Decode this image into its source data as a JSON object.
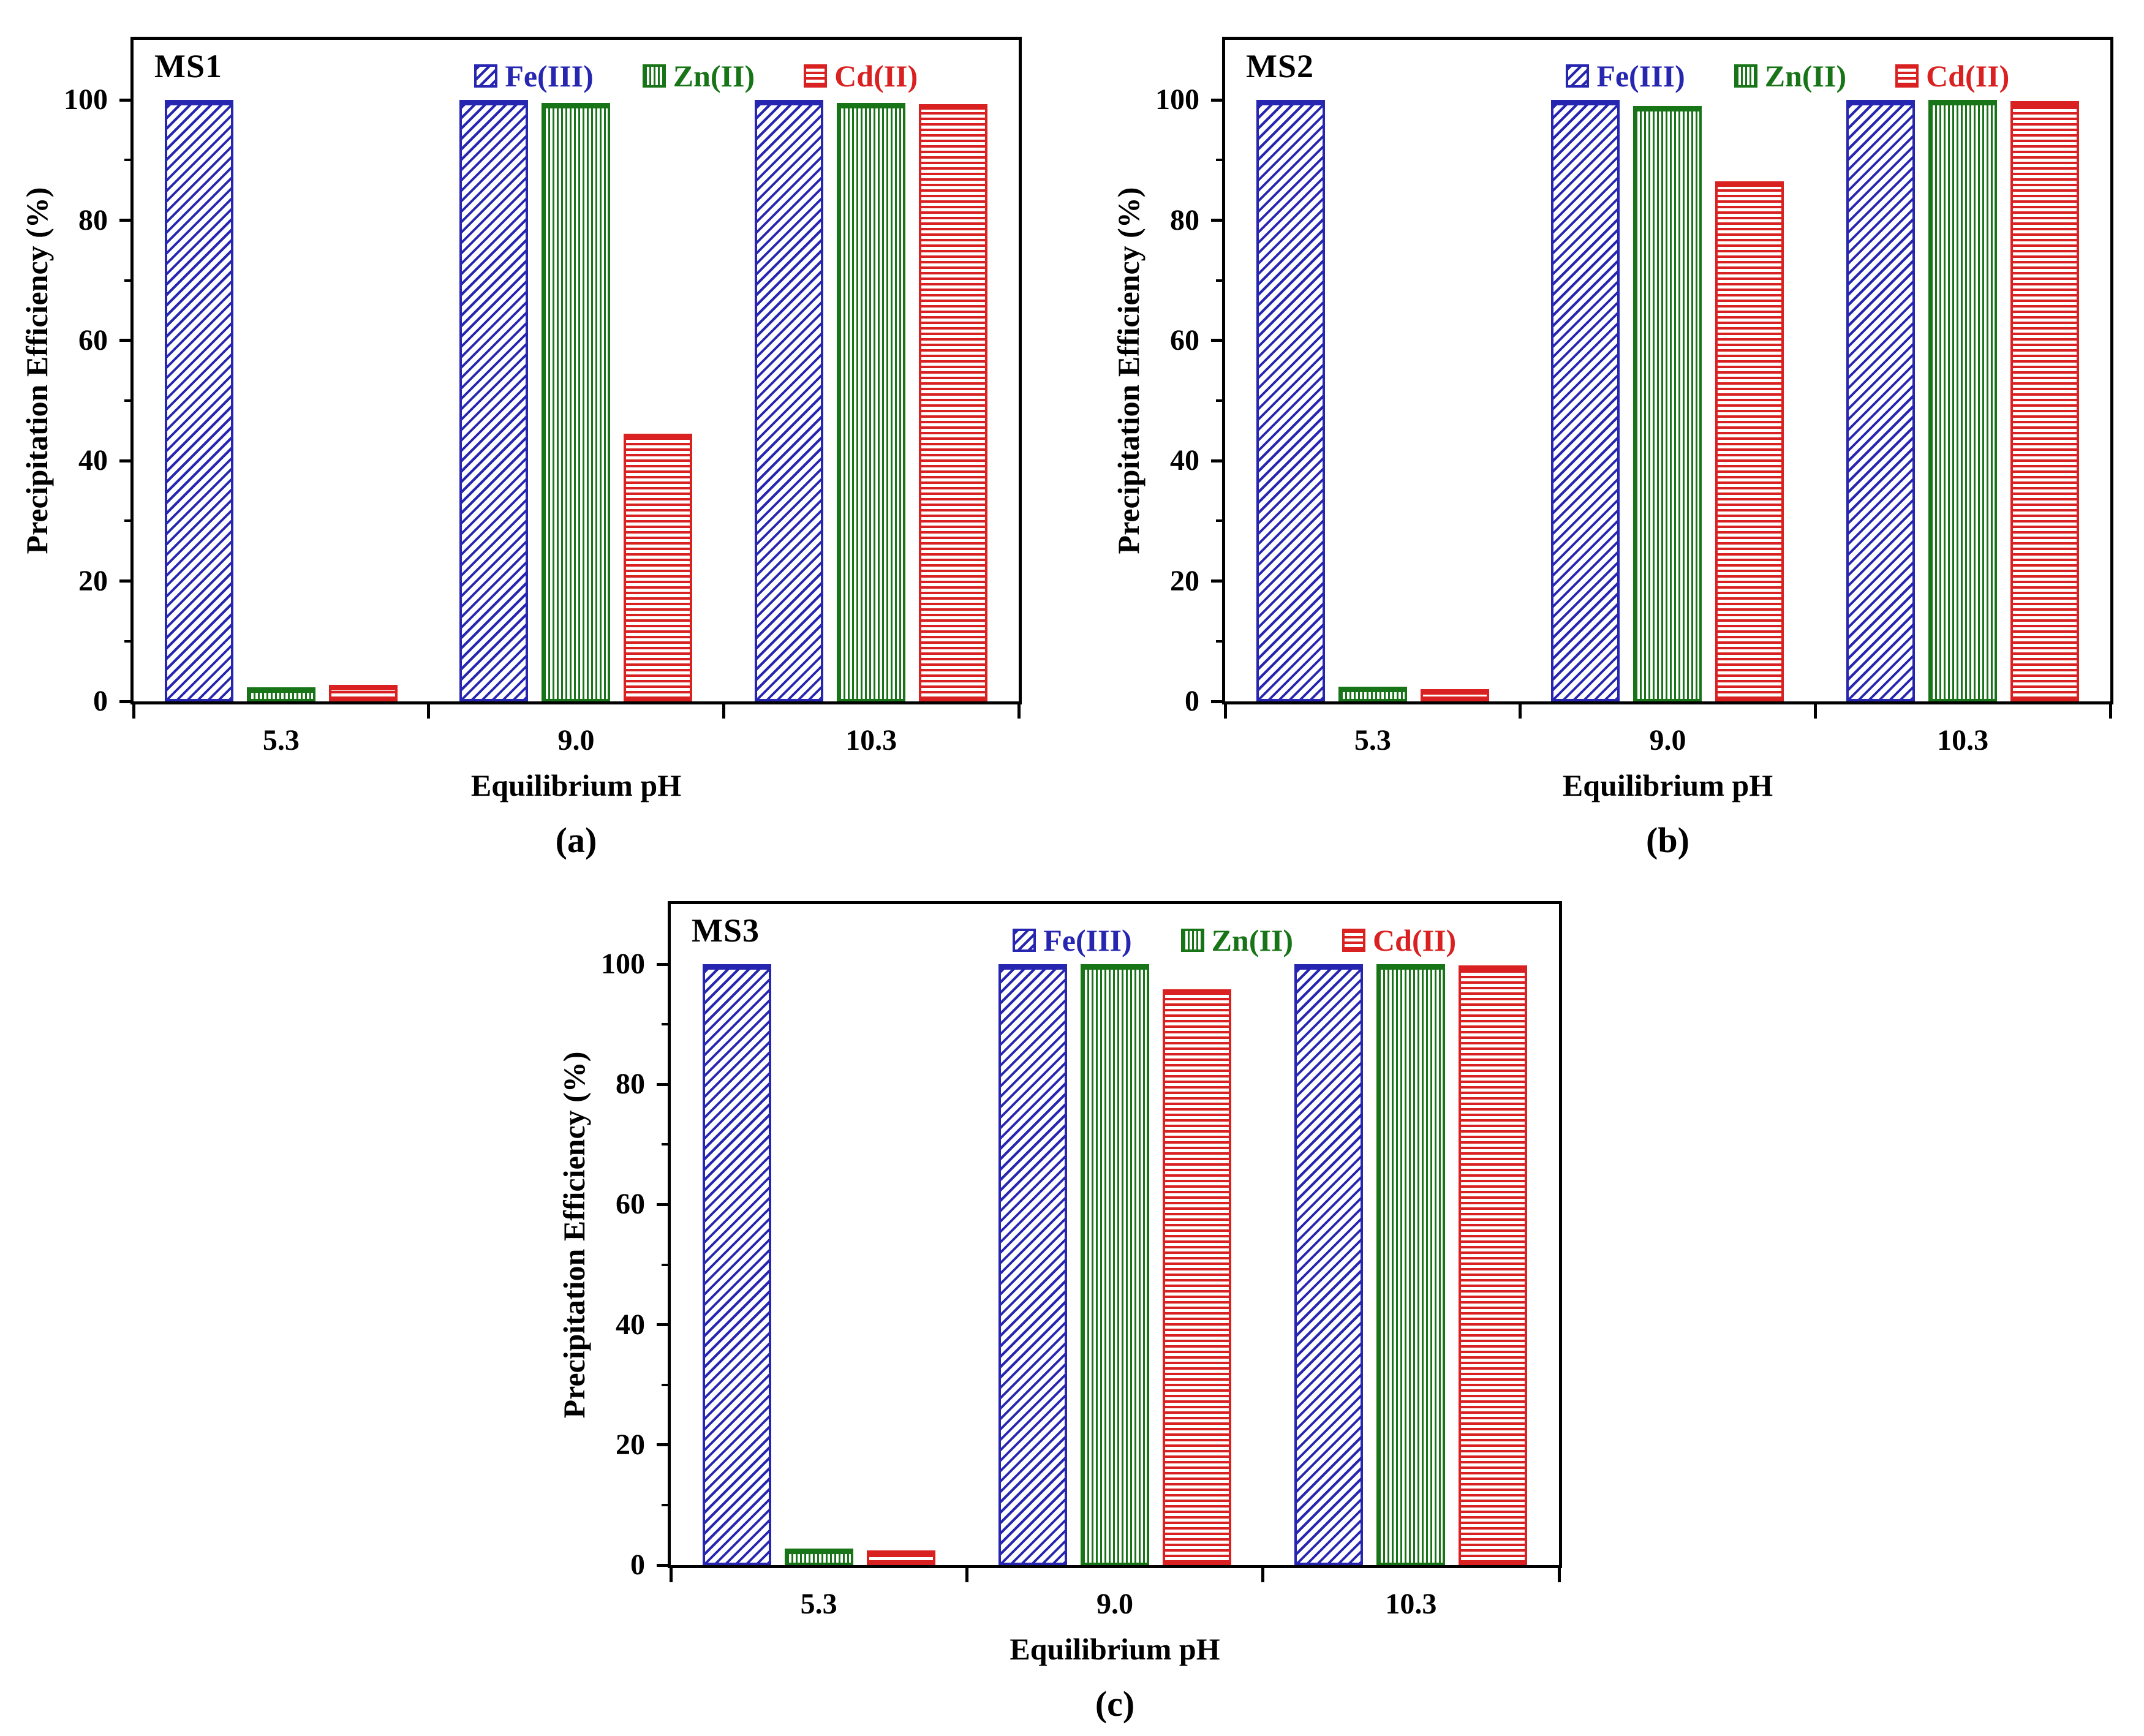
{
  "axis": {
    "ylabel": "Precipitation Efficiency (%)",
    "xlabel": "Equilibrium pH",
    "y_ticks": [
      0,
      20,
      40,
      60,
      80,
      100
    ],
    "y_minor_ticks": [
      10,
      30,
      50,
      70,
      90
    ],
    "ylim": [
      0,
      110
    ],
    "categories": [
      "5.3",
      "9.0",
      "10.3"
    ]
  },
  "legend": {
    "items": [
      "Fe(III)",
      "Zn(II)",
      "Cd(II)"
    ]
  },
  "colors": {
    "fe": "#2626b0",
    "zn": "#177417",
    "cd": "#d92121",
    "axis": "#000000"
  },
  "chart_data": [
    {
      "type": "bar",
      "panel_label": "MS1",
      "caption": "(a)",
      "xlabel": "Equilibrium pH",
      "ylabel": "Precipitation Efficiency (%)",
      "categories": [
        "5.3",
        "9.0",
        "10.3"
      ],
      "ylim": [
        0,
        110
      ],
      "legend_position": "top-inside",
      "grid": false,
      "series": [
        {
          "key": "fe",
          "name": "Fe(III)",
          "color": "#2626b0",
          "hatch": "diagonal",
          "values": [
            100,
            100,
            100
          ]
        },
        {
          "key": "zn",
          "name": "Zn(II)",
          "color": "#177417",
          "hatch": "vertical",
          "values": [
            2.3,
            99.5,
            99.5
          ]
        },
        {
          "key": "cd",
          "name": "Cd(II)",
          "color": "#d92121",
          "hatch": "horizontal",
          "values": [
            2.8,
            44.5,
            99.3
          ]
        }
      ]
    },
    {
      "type": "bar",
      "panel_label": "MS2",
      "caption": "(b)",
      "xlabel": "Equilibrium pH",
      "ylabel": "Precipitation Efficiency (%)",
      "categories": [
        "5.3",
        "9.0",
        "10.3"
      ],
      "ylim": [
        0,
        110
      ],
      "legend_position": "top-inside",
      "grid": false,
      "series": [
        {
          "key": "fe",
          "name": "Fe(III)",
          "color": "#2626b0",
          "hatch": "diagonal",
          "values": [
            100,
            100,
            100
          ]
        },
        {
          "key": "zn",
          "name": "Zn(II)",
          "color": "#177417",
          "hatch": "vertical",
          "values": [
            2.4,
            99.0,
            100
          ]
        },
        {
          "key": "cd",
          "name": "Cd(II)",
          "color": "#d92121",
          "hatch": "horizontal",
          "values": [
            2.0,
            86.5,
            99.8
          ]
        }
      ]
    },
    {
      "type": "bar",
      "panel_label": "MS3",
      "caption": "(c)",
      "xlabel": "Equilibrium pH",
      "ylabel": "Precipitation Efficiency (%)",
      "categories": [
        "5.3",
        "9.0",
        "10.3"
      ],
      "ylim": [
        0,
        110
      ],
      "legend_position": "top-inside",
      "grid": false,
      "series": [
        {
          "key": "fe",
          "name": "Fe(III)",
          "color": "#2626b0",
          "hatch": "diagonal",
          "values": [
            100,
            100,
            100
          ]
        },
        {
          "key": "zn",
          "name": "Zn(II)",
          "color": "#177417",
          "hatch": "vertical",
          "values": [
            2.8,
            100,
            100
          ]
        },
        {
          "key": "cd",
          "name": "Cd(II)",
          "color": "#d92121",
          "hatch": "horizontal",
          "values": [
            2.4,
            95.8,
            99.8
          ]
        }
      ]
    }
  ]
}
